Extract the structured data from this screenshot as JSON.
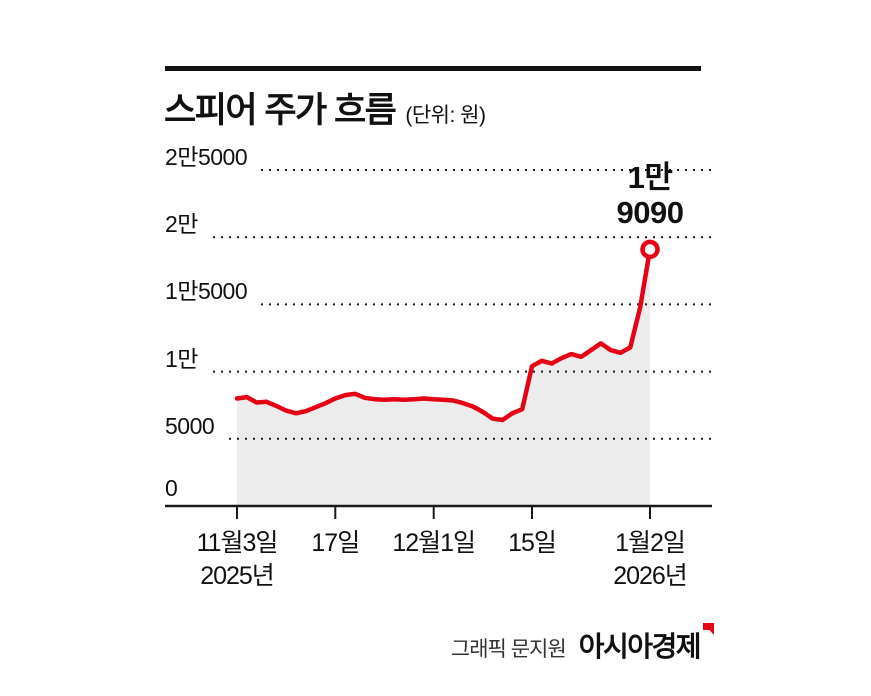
{
  "chart_data": {
    "type": "line",
    "title": "스피어 주가 흐름",
    "unit_label": "(단위: 원)",
    "line_color": "#e60013",
    "area_color": "#ececec",
    "grid": "dotted-horizontal",
    "ylim": [
      0,
      25000
    ],
    "y_ticks": [
      {
        "label": "2만5000",
        "value": 25000
      },
      {
        "label": "2만",
        "value": 20000
      },
      {
        "label": "1만5000",
        "value": 15000
      },
      {
        "label": "1만",
        "value": 10000
      },
      {
        "label": "5000",
        "value": 5000
      },
      {
        "label": "0",
        "value": 0
      }
    ],
    "x_ticks": [
      {
        "label": "11월3일",
        "sub": "2025년",
        "index": 0
      },
      {
        "label": "17일",
        "sub": "",
        "index": 10
      },
      {
        "label": "12월1일",
        "sub": "",
        "index": 20
      },
      {
        "label": "15일",
        "sub": "",
        "index": 30
      },
      {
        "label": "1월2일",
        "sub": "2026년",
        "index": 42
      }
    ],
    "values": [
      8000,
      8100,
      7700,
      7750,
      7450,
      7100,
      6900,
      7050,
      7350,
      7650,
      8000,
      8250,
      8350,
      8050,
      7950,
      7900,
      7950,
      7900,
      7950,
      8000,
      7950,
      7900,
      7850,
      7650,
      7400,
      7000,
      6500,
      6400,
      6900,
      7200,
      10400,
      10800,
      10600,
      11000,
      11300,
      11100,
      11600,
      12100,
      11600,
      11400,
      11800,
      14800,
      19090
    ],
    "last_value": 19090,
    "annotation": {
      "line1": "1만",
      "line2": "9090"
    }
  },
  "footer": {
    "credit": "그래픽 문지원",
    "brand": "아시아경제"
  }
}
